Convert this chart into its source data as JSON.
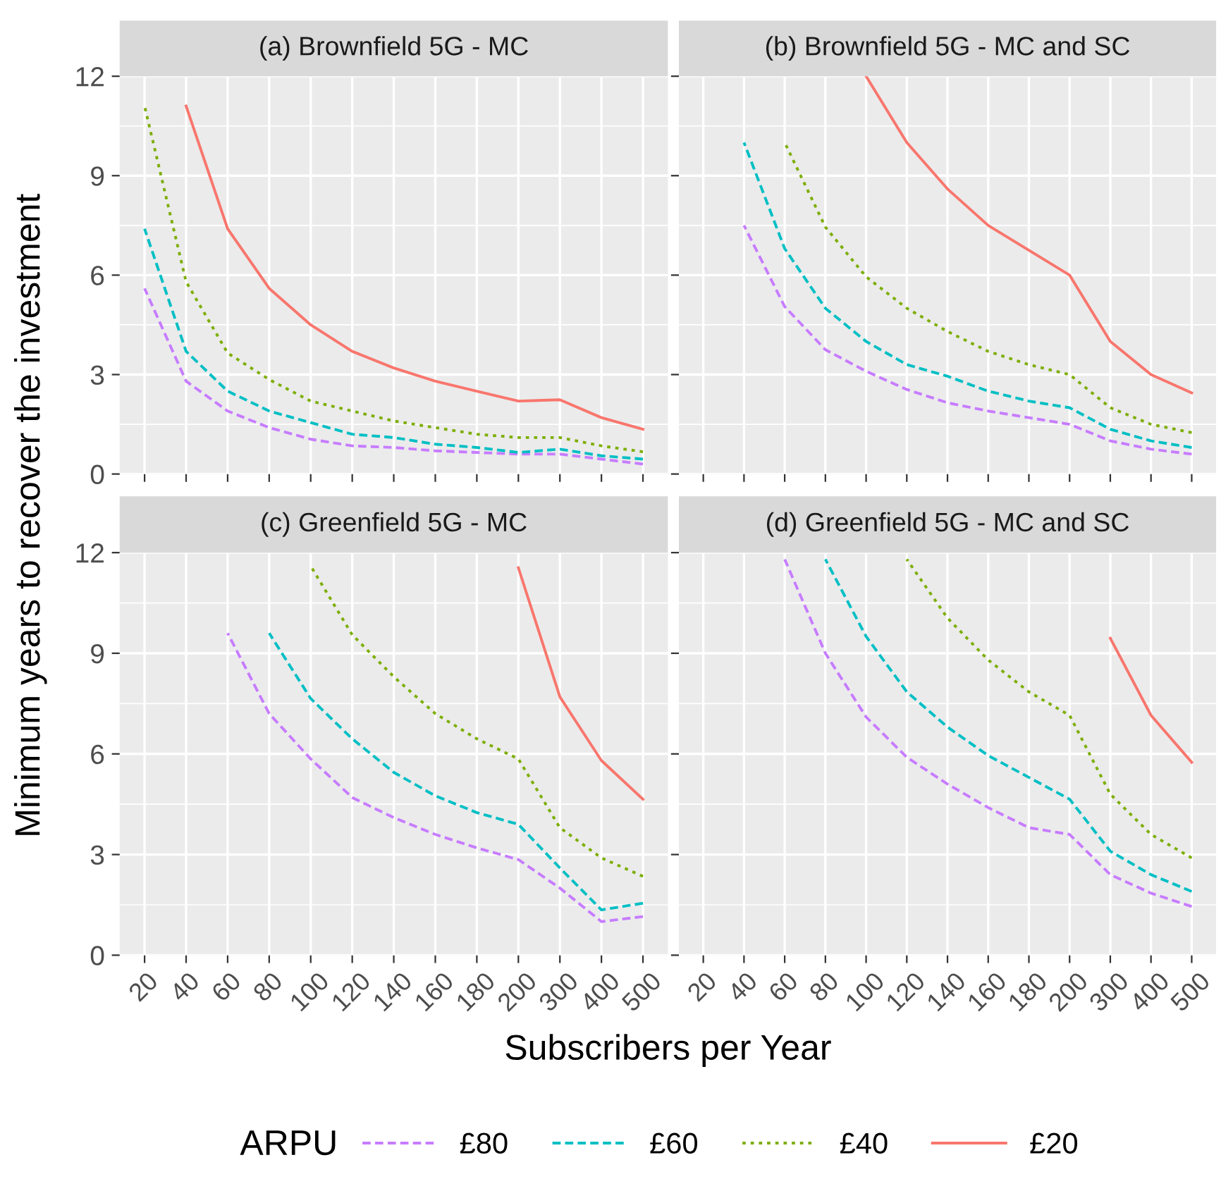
{
  "chart_data": [
    {
      "type": "line",
      "title": "(a) Brownfield 5G - MC",
      "ylabel": "Minimum years to recover the investment",
      "xlabel": "Subscribers per Year",
      "legend_title": "ARPU",
      "legend": "bottom",
      "grid": true,
      "tick_labels": "y",
      "categories": [
        "20",
        "40",
        "60",
        "80",
        "100",
        "120",
        "140",
        "160",
        "180",
        "200",
        "300",
        "400",
        "500"
      ],
      "ylim": [
        0,
        12
      ],
      "yticks": [
        0,
        3,
        6,
        9,
        12
      ],
      "series": [
        {
          "name": "£80",
          "color": "#c77cff",
          "line_style": "dashed",
          "values": [
            5.6,
            2.8,
            1.9,
            1.4,
            1.05,
            0.85,
            0.8,
            0.7,
            0.65,
            0.6,
            0.6,
            0.45,
            0.3
          ]
        },
        {
          "name": "£60",
          "color": "#00bfc4",
          "line_style": "dashed",
          "values": [
            7.4,
            3.7,
            2.5,
            1.9,
            1.55,
            1.2,
            1.1,
            0.9,
            0.8,
            0.65,
            0.75,
            0.55,
            0.45
          ]
        },
        {
          "name": "£40",
          "color": "#7cae00",
          "line_style": "dotted",
          "values": [
            11.1,
            5.8,
            3.65,
            2.85,
            2.2,
            1.9,
            1.6,
            1.4,
            1.2,
            1.1,
            1.1,
            0.85,
            0.67
          ]
        },
        {
          "name": "£20",
          "color": "#f8766d",
          "line_style": "solid",
          "values": [
            null,
            11.1,
            7.4,
            5.6,
            4.5,
            3.7,
            3.2,
            2.8,
            2.5,
            2.2,
            2.24,
            1.7,
            1.35
          ]
        }
      ]
    },
    {
      "type": "line",
      "title": "(b) Brownfield 5G - MC and SC",
      "grid": true,
      "tick_labels": false,
      "categories": [
        "20",
        "40",
        "60",
        "80",
        "100",
        "120",
        "140",
        "160",
        "180",
        "200",
        "300",
        "400",
        "500"
      ],
      "ylim": [
        0,
        12
      ],
      "yticks": [
        0,
        3,
        6,
        9,
        12
      ],
      "series": [
        {
          "name": "£80",
          "color": "#c77cff",
          "line_style": "dashed",
          "values": [
            null,
            7.5,
            5.05,
            3.75,
            3.1,
            2.55,
            2.15,
            1.9,
            1.7,
            1.5,
            1.0,
            0.75,
            0.6
          ]
        },
        {
          "name": "£60",
          "color": "#00bfc4",
          "line_style": "dashed",
          "values": [
            null,
            10.0,
            6.8,
            5.0,
            4.0,
            3.3,
            2.95,
            2.5,
            2.2,
            2.0,
            1.35,
            1.0,
            0.8
          ]
        },
        {
          "name": "£40",
          "color": "#7cae00",
          "line_style": "dotted",
          "values": [
            null,
            null,
            10.0,
            7.45,
            5.95,
            5.0,
            4.3,
            3.7,
            3.3,
            3.0,
            2.0,
            1.5,
            1.25
          ]
        },
        {
          "name": "£20",
          "color": "#f8766d",
          "line_style": "solid",
          "values": [
            null,
            null,
            null,
            null,
            12.0,
            10.0,
            8.6,
            7.5,
            6.75,
            6.0,
            4.0,
            3.0,
            2.45
          ]
        }
      ]
    },
    {
      "type": "line",
      "title": "(c) Greenfield 5G - MC",
      "grid": true,
      "categories": [
        "20",
        "40",
        "60",
        "80",
        "100",
        "120",
        "140",
        "160",
        "180",
        "200",
        "300",
        "400",
        "500"
      ],
      "ylim": [
        0,
        12
      ],
      "yticks": [
        0,
        3,
        6,
        9,
        12
      ],
      "series": [
        {
          "name": "£80",
          "color": "#c77cff",
          "line_style": "dashed",
          "values": [
            null,
            null,
            9.6,
            7.2,
            5.85,
            4.7,
            4.1,
            3.6,
            3.2,
            2.85,
            2.0,
            1.0,
            1.15
          ]
        },
        {
          "name": "£60",
          "color": "#00bfc4",
          "line_style": "dashed",
          "values": [
            null,
            null,
            null,
            9.6,
            7.65,
            6.45,
            5.45,
            4.75,
            4.25,
            3.9,
            2.6,
            1.35,
            1.55
          ]
        },
        {
          "name": "£40",
          "color": "#7cae00",
          "line_style": "dotted",
          "values": [
            null,
            null,
            null,
            null,
            11.6,
            9.55,
            8.3,
            7.2,
            6.45,
            5.85,
            3.8,
            2.9,
            2.35
          ]
        },
        {
          "name": "£20",
          "color": "#f8766d",
          "line_style": "solid",
          "values": [
            null,
            null,
            null,
            null,
            null,
            null,
            null,
            null,
            null,
            11.55,
            7.7,
            5.8,
            4.65
          ]
        }
      ]
    },
    {
      "type": "line",
      "title": "(d) Greenfield 5G - MC and SC",
      "grid": true,
      "tick_labels": "x",
      "categories": [
        "20",
        "40",
        "60",
        "80",
        "100",
        "120",
        "140",
        "160",
        "180",
        "200",
        "300",
        "400",
        "500"
      ],
      "ylim": [
        0,
        12
      ],
      "yticks": [
        0,
        3,
        6,
        9,
        12
      ],
      "series": [
        {
          "name": "£80",
          "color": "#c77cff",
          "line_style": "dashed",
          "values": [
            null,
            null,
            11.8,
            9.0,
            7.1,
            5.9,
            5.1,
            4.4,
            3.8,
            3.6,
            2.4,
            1.85,
            1.45
          ]
        },
        {
          "name": "£60",
          "color": "#00bfc4",
          "line_style": "dashed",
          "values": [
            null,
            null,
            null,
            11.8,
            9.5,
            7.85,
            6.8,
            5.95,
            5.3,
            4.65,
            3.1,
            2.4,
            1.9
          ]
        },
        {
          "name": "£40",
          "color": "#7cae00",
          "line_style": "dotted",
          "values": [
            null,
            null,
            null,
            null,
            null,
            11.8,
            10.05,
            8.8,
            7.85,
            7.15,
            4.8,
            3.6,
            2.9
          ]
        },
        {
          "name": "£20",
          "color": "#f8766d",
          "line_style": "solid",
          "values": [
            null,
            null,
            null,
            null,
            null,
            null,
            null,
            null,
            null,
            null,
            9.45,
            7.15,
            5.75
          ]
        }
      ]
    }
  ]
}
